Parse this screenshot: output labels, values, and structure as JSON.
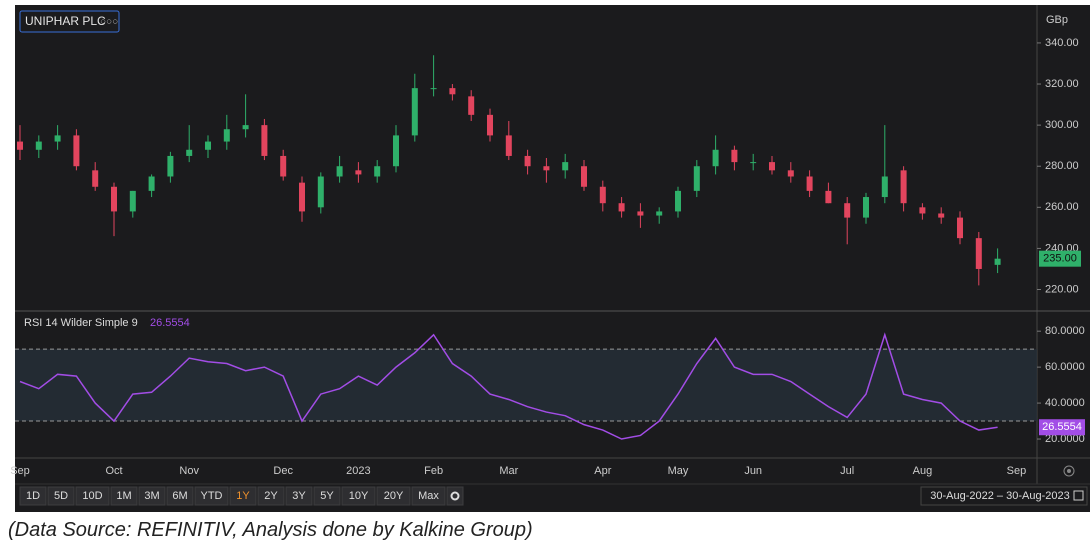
{
  "chart_data": [
    {
      "type": "candlestick",
      "title": "UNIPHAR PLC",
      "unit": "GBp",
      "open": [
        292,
        288,
        292,
        295,
        278,
        270,
        258,
        268,
        275,
        285,
        288,
        292,
        298,
        300,
        285,
        272,
        260,
        275,
        278,
        275,
        280,
        295,
        318,
        318,
        314,
        305,
        295,
        285,
        280,
        278,
        280,
        270,
        262,
        258,
        256,
        258,
        268,
        280,
        288,
        282,
        282,
        278,
        275,
        268,
        262,
        255,
        265,
        278,
        260,
        257,
        255,
        245,
        232,
        null
      ],
      "high": [
        300,
        295,
        300,
        298,
        282,
        272,
        268,
        276,
        287,
        300,
        295,
        305,
        315,
        303,
        288,
        275,
        277,
        285,
        282,
        283,
        300,
        325,
        334,
        320,
        317,
        308,
        302,
        288,
        284,
        286,
        283,
        273,
        265,
        262,
        260,
        270,
        283,
        295,
        290,
        286,
        285,
        282,
        278,
        272,
        265,
        267,
        300,
        280,
        262,
        260,
        258,
        248,
        240,
        null
      ],
      "low": [
        283,
        284,
        288,
        278,
        268,
        246,
        255,
        265,
        272,
        282,
        284,
        288,
        294,
        283,
        273,
        253,
        257,
        272,
        272,
        272,
        277,
        292,
        314,
        312,
        302,
        292,
        283,
        276,
        272,
        274,
        268,
        258,
        255,
        250,
        252,
        255,
        265,
        276,
        278,
        278,
        276,
        272,
        265,
        262,
        242,
        252,
        262,
        258,
        254,
        252,
        242,
        222,
        228,
        null
      ],
      "close": [
        288,
        292,
        295,
        280,
        270,
        258,
        268,
        275,
        285,
        288,
        292,
        298,
        300,
        285,
        275,
        258,
        275,
        280,
        276,
        280,
        295,
        318,
        318,
        315,
        305,
        295,
        285,
        280,
        278,
        282,
        270,
        262,
        258,
        256,
        258,
        268,
        280,
        288,
        282,
        282,
        278,
        275,
        268,
        262,
        255,
        265,
        275,
        262,
        257,
        255,
        245,
        230,
        235,
        null
      ],
      "last_close_label": "235.00",
      "up_color": "#2fb06a",
      "down_color": "#e2455e",
      "ylim": [
        211,
        357
      ],
      "yticks": [
        {
          "value": 220,
          "label": "220.00"
        },
        {
          "value": 240,
          "label": "240.00"
        },
        {
          "value": 260,
          "label": "260.00"
        },
        {
          "value": 280,
          "label": "280.00"
        },
        {
          "value": 300,
          "label": "300.00"
        },
        {
          "value": 320,
          "label": "320.00"
        },
        {
          "value": 340,
          "label": "340.00"
        }
      ]
    },
    {
      "type": "line",
      "categories": [
        "Sep",
        null,
        null,
        null,
        null,
        "Oct",
        null,
        null,
        null,
        "Nov",
        null,
        null,
        null,
        null,
        "Dec",
        null,
        null,
        null,
        "2023",
        null,
        null,
        null,
        "Feb",
        null,
        null,
        null,
        "Mar",
        null,
        null,
        null,
        null,
        "Apr",
        null,
        null,
        null,
        "May",
        null,
        null,
        null,
        "Jun",
        null,
        null,
        null,
        null,
        "Jul",
        null,
        null,
        null,
        "Aug",
        null,
        null,
        null,
        null,
        "Sep"
      ],
      "series": [
        {
          "name": "RSI 14 Wilder Simple 9",
          "color": "#a24de6",
          "values": [
            52,
            48,
            56,
            55,
            40,
            30,
            45,
            46,
            55,
            65,
            63,
            62,
            58,
            60,
            55,
            30,
            45,
            48,
            55,
            50,
            60,
            68,
            78,
            62,
            55,
            45,
            42,
            38,
            35,
            33,
            28,
            25,
            20,
            22,
            30,
            45,
            62,
            76,
            60,
            56,
            56,
            52,
            45,
            38,
            32,
            45,
            78,
            45,
            42,
            40,
            30,
            25,
            26.5554,
            null
          ]
        }
      ],
      "levels": [
        70,
        30
      ],
      "ylim": [
        10,
        89
      ],
      "yticks": [
        {
          "value": 20,
          "label": "20.0000"
        },
        {
          "value": 40,
          "label": "40.0000"
        },
        {
          "value": 60,
          "label": "60.0000"
        },
        {
          "value": 80,
          "label": "80.0000"
        }
      ]
    }
  ],
  "toolbar": {
    "ranges": [
      "1D",
      "5D",
      "10D",
      "1M",
      "3M",
      "6M",
      "YTD",
      "1Y",
      "2Y",
      "3Y",
      "5Y",
      "10Y",
      "20Y",
      "Max"
    ],
    "selected": "1Y",
    "date_range": "30-Aug-2022 – 30-Aug-2023"
  },
  "caption": "(Data Source: REFINITIV, Analysis done by Kalkine Group)"
}
